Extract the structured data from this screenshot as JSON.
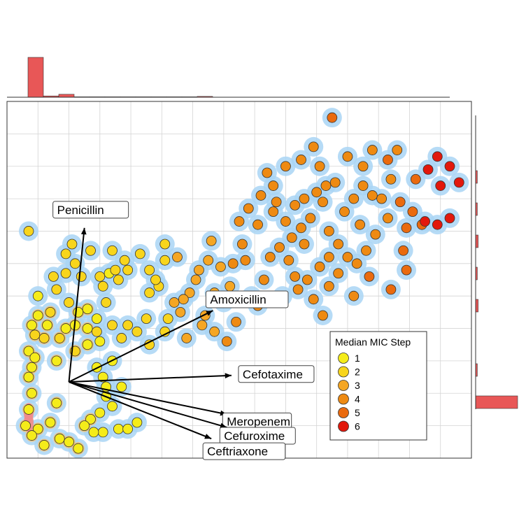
{
  "chart_data": {
    "type": "scatter",
    "title": "",
    "xlabel": "",
    "ylabel": "",
    "xlim": [
      0,
      15
    ],
    "ylim": [
      0,
      11
    ],
    "grid": true,
    "density_contours": true,
    "marginal_histograms": [
      "top",
      "right"
    ],
    "legend": {
      "title": "Median MIC Step",
      "placement": "bottom-right",
      "entries": [
        {
          "label": "1",
          "step": 1,
          "color": "#f5ec1a"
        },
        {
          "label": "2",
          "step": 2,
          "color": "#f8d51c"
        },
        {
          "label": "3",
          "step": 3,
          "color": "#f5a623"
        },
        {
          "label": "4",
          "step": 4,
          "color": "#ee8a12"
        },
        {
          "label": "5",
          "step": 5,
          "color": "#ea6a0e"
        },
        {
          "label": "6",
          "step": 6,
          "color": "#e2180c"
        }
      ]
    },
    "origin": [
      2.0,
      2.35
    ],
    "vectors": [
      {
        "label": "Penicillin",
        "x": 2.5,
        "y": 7.1
      },
      {
        "label": "Amoxicillin",
        "x": 6.65,
        "y": 4.55
      },
      {
        "label": "Cefotaxime",
        "x": 7.25,
        "y": 2.55
      },
      {
        "label": "Meropenem",
        "x": 7.1,
        "y": 1.35
      },
      {
        "label": "Cefuroxime",
        "x": 7.1,
        "y": 0.95
      },
      {
        "label": "Ceftriaxone",
        "x": 6.6,
        "y": 0.6
      }
    ],
    "points": [
      [
        0.7,
        7.0,
        2
      ],
      [
        2.1,
        6.6,
        2
      ],
      [
        1.9,
        6.3,
        2
      ],
      [
        1.6,
        5.2,
        2
      ],
      [
        2.0,
        4.8,
        2
      ],
      [
        2.4,
        5.6,
        2
      ],
      [
        0.8,
        4.1,
        1
      ],
      [
        1.0,
        4.4,
        1
      ],
      [
        0.9,
        3.8,
        2
      ],
      [
        1.2,
        3.7,
        2
      ],
      [
        0.7,
        3.3,
        1
      ],
      [
        0.9,
        3.1,
        1
      ],
      [
        0.8,
        2.8,
        1
      ],
      [
        1.6,
        3.0,
        1
      ],
      [
        2.2,
        3.3,
        2
      ],
      [
        2.6,
        3.5,
        1
      ],
      [
        1.3,
        4.1,
        1
      ],
      [
        1.7,
        3.7,
        2
      ],
      [
        2.2,
        4.1,
        1
      ],
      [
        2.3,
        4.5,
        1
      ],
      [
        2.6,
        4.6,
        1
      ],
      [
        3.0,
        5.6,
        2
      ],
      [
        3.3,
        5.7,
        1
      ],
      [
        3.1,
        5.3,
        2
      ],
      [
        3.5,
        5.8,
        2
      ],
      [
        3.9,
        5.8,
        2
      ],
      [
        3.6,
        5.5,
        2
      ],
      [
        3.2,
        4.8,
        2
      ],
      [
        2.9,
        4.3,
        1
      ],
      [
        3.4,
        4.1,
        2
      ],
      [
        3.7,
        3.7,
        2
      ],
      [
        3.9,
        4.1,
        2
      ],
      [
        4.2,
        3.9,
        2
      ],
      [
        4.5,
        4.3,
        2
      ],
      [
        4.6,
        5.1,
        2
      ],
      [
        4.9,
        5.3,
        2
      ],
      [
        5.2,
        4.3,
        2
      ],
      [
        5.1,
        3.9,
        2
      ],
      [
        4.6,
        3.5,
        2
      ],
      [
        4.8,
        5.5,
        2
      ],
      [
        5.1,
        6.1,
        2
      ],
      [
        5.1,
        6.6,
        2
      ],
      [
        3.0,
        3.6,
        1
      ],
      [
        3.4,
        3.0,
        1
      ],
      [
        2.9,
        2.8,
        1
      ],
      [
        3.1,
        2.5,
        1
      ],
      [
        3.2,
        2.2,
        1
      ],
      [
        3.7,
        2.2,
        1
      ],
      [
        0.7,
        2.5,
        1
      ],
      [
        0.8,
        2.0,
        1
      ],
      [
        0.7,
        1.5,
        1
      ],
      [
        0.6,
        1.0,
        1
      ],
      [
        1.0,
        0.9,
        1
      ],
      [
        1.4,
        1.1,
        1
      ],
      [
        1.7,
        0.6,
        1
      ],
      [
        2.0,
        0.5,
        1
      ],
      [
        2.3,
        0.3,
        1
      ],
      [
        1.6,
        1.7,
        1
      ],
      [
        2.7,
        1.2,
        1
      ],
      [
        3.1,
        0.8,
        1
      ],
      [
        3.6,
        0.9,
        1
      ],
      [
        3.9,
        0.9,
        1
      ],
      [
        4.2,
        1.1,
        1
      ],
      [
        2.5,
        1.0,
        1
      ],
      [
        2.8,
        0.8,
        1
      ],
      [
        3.4,
        1.6,
        1
      ],
      [
        3.2,
        1.9,
        1
      ],
      [
        3.0,
        1.4,
        1
      ],
      [
        0.8,
        0.7,
        1
      ],
      [
        1.2,
        0.4,
        1
      ],
      [
        2.6,
        4.0,
        1
      ],
      [
        2.9,
        3.9,
        2
      ],
      [
        1.9,
        4.0,
        1
      ],
      [
        1.4,
        4.5,
        2
      ],
      [
        1.0,
        5.0,
        1
      ],
      [
        1.5,
        5.6,
        2
      ],
      [
        1.9,
        5.7,
        2
      ],
      [
        2.2,
        6.0,
        2
      ],
      [
        2.7,
        6.4,
        2
      ],
      [
        3.4,
        6.4,
        2
      ],
      [
        3.8,
        6.1,
        2
      ],
      [
        4.3,
        6.3,
        2
      ],
      [
        4.6,
        5.8,
        2
      ],
      [
        5.5,
        6.2,
        3
      ],
      [
        5.9,
        5.1,
        3
      ],
      [
        5.6,
        4.5,
        3
      ],
      [
        6.4,
        4.4,
        3
      ],
      [
        5.7,
        4.9,
        3
      ],
      [
        6.2,
        5.8,
        3
      ],
      [
        6.5,
        6.1,
        3
      ],
      [
        6.6,
        6.7,
        3
      ],
      [
        6.9,
        5.9,
        3
      ],
      [
        7.3,
        6.0,
        4
      ],
      [
        7.6,
        6.6,
        4
      ],
      [
        7.2,
        5.3,
        3
      ],
      [
        7.9,
        5.0,
        4
      ],
      [
        8.1,
        4.7,
        4
      ],
      [
        8.3,
        5.5,
        4
      ],
      [
        8.5,
        6.2,
        4
      ],
      [
        8.8,
        6.5,
        4
      ],
      [
        7.5,
        7.3,
        4
      ],
      [
        7.8,
        7.7,
        4
      ],
      [
        8.1,
        7.2,
        4
      ],
      [
        8.6,
        7.6,
        4
      ],
      [
        8.7,
        7.9,
        4
      ],
      [
        9.0,
        7.3,
        4
      ],
      [
        9.2,
        6.8,
        4
      ],
      [
        9.5,
        7.1,
        4
      ],
      [
        9.3,
        7.8,
        4
      ],
      [
        9.6,
        8.0,
        4
      ],
      [
        10.0,
        8.2,
        4
      ],
      [
        10.3,
        8.4,
        4
      ],
      [
        10.6,
        8.5,
        4
      ],
      [
        10.2,
        7.9,
        4
      ],
      [
        9.8,
        7.4,
        4
      ],
      [
        10.4,
        7.0,
        4
      ],
      [
        10.7,
        6.6,
        4
      ],
      [
        9.6,
        6.6,
        4
      ],
      [
        9.1,
        6.1,
        4
      ],
      [
        9.3,
        5.6,
        4
      ],
      [
        9.7,
        5.5,
        4
      ],
      [
        10.1,
        5.9,
        4
      ],
      [
        10.4,
        6.2,
        4
      ],
      [
        10.7,
        5.7,
        4
      ],
      [
        11.0,
        6.2,
        4
      ],
      [
        11.3,
        6.0,
        4
      ],
      [
        11.6,
        6.4,
        4
      ],
      [
        11.9,
        6.9,
        4
      ],
      [
        12.3,
        7.4,
        4
      ],
      [
        12.1,
        8.0,
        4
      ],
      [
        11.8,
        8.1,
        4
      ],
      [
        11.5,
        8.4,
        4
      ],
      [
        11.2,
        8.0,
        4
      ],
      [
        10.9,
        7.6,
        4
      ],
      [
        11.4,
        7.2,
        4
      ],
      [
        11.0,
        9.3,
        4
      ],
      [
        11.5,
        9.0,
        4
      ],
      [
        11.8,
        9.5,
        4
      ],
      [
        12.3,
        9.2,
        5
      ],
      [
        12.4,
        8.6,
        4
      ],
      [
        12.7,
        7.9,
        5
      ],
      [
        13.1,
        7.6,
        5
      ],
      [
        13.4,
        7.2,
        5
      ],
      [
        12.9,
        7.1,
        5
      ],
      [
        12.8,
        6.4,
        5
      ],
      [
        12.9,
        5.8,
        5
      ],
      [
        12.4,
        5.2,
        5
      ],
      [
        11.7,
        5.6,
        5
      ],
      [
        11.2,
        5.0,
        4
      ],
      [
        10.4,
        5.3,
        4
      ],
      [
        9.9,
        4.9,
        4
      ],
      [
        9.4,
        5.2,
        4
      ],
      [
        8.9,
        5.0,
        4
      ],
      [
        10.2,
        4.4,
        4
      ],
      [
        10.5,
        10.5,
        5
      ],
      [
        9.9,
        9.6,
        4
      ],
      [
        9.0,
        9.0,
        4
      ],
      [
        8.6,
        8.4,
        4
      ],
      [
        8.2,
        8.1,
        4
      ],
      [
        7.7,
        6.1,
        4
      ],
      [
        7.4,
        4.2,
        4
      ],
      [
        7.1,
        3.6,
        4
      ],
      [
        6.7,
        3.9,
        3
      ],
      [
        6.3,
        4.1,
        3
      ],
      [
        5.8,
        3.7,
        3
      ],
      [
        5.4,
        4.8,
        3
      ],
      [
        6.1,
        5.5,
        3
      ],
      [
        6.7,
        5.1,
        3
      ],
      [
        7.0,
        4.8,
        3
      ],
      [
        8.4,
        8.8,
        4
      ],
      [
        9.5,
        9.2,
        4
      ],
      [
        10.1,
        9.0,
        4
      ],
      [
        12.6,
        9.5,
        4
      ],
      [
        13.2,
        8.6,
        5
      ],
      [
        13.6,
        8.9,
        6
      ],
      [
        13.9,
        9.3,
        6
      ],
      [
        14.3,
        9.0,
        6
      ],
      [
        14.0,
        8.4,
        6
      ],
      [
        14.6,
        8.5,
        6
      ],
      [
        14.3,
        7.4,
        6
      ],
      [
        13.5,
        7.3,
        6
      ],
      [
        13.9,
        7.2,
        6
      ]
    ],
    "density_levels": [
      {
        "level": 1,
        "color": "#a9d5f5"
      },
      {
        "level": 2,
        "color": "#f7c26b"
      },
      {
        "level": 3,
        "color": "#f08b8b"
      }
    ],
    "top_histogram": [
      0.95,
      0.03,
      0.07,
      0.01,
      0.01,
      0.01,
      0.01,
      0.01,
      0.01,
      0.01,
      0.01,
      0.02
    ],
    "right_histogram": [
      0.5,
      0.02,
      0.0,
      0.03,
      0.02,
      0.03,
      0.02,
      0.02,
      0.0,
      0.0,
      0.0
    ]
  }
}
